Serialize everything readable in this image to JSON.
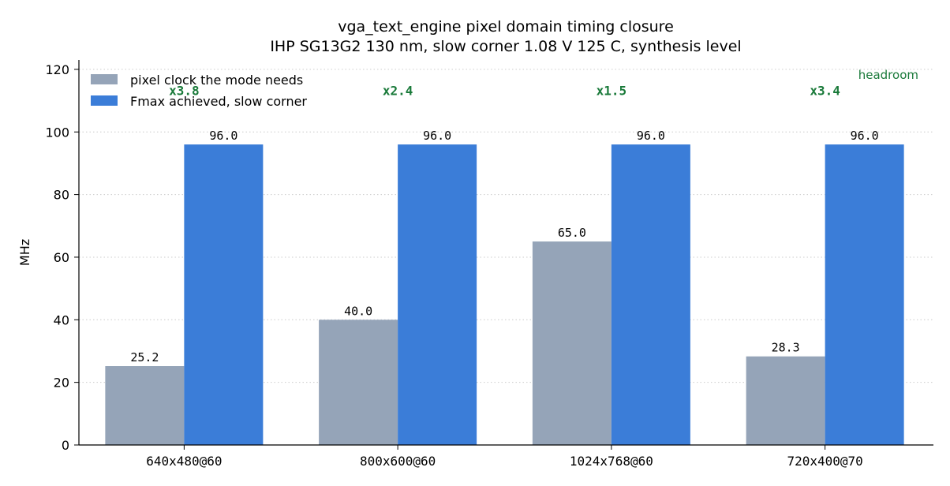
{
  "chart_data": {
    "type": "bar",
    "title": "vga_text_engine pixel domain timing closure",
    "subtitle": "IHP SG13G2 130 nm, slow corner 1.08 V 125 C, synthesis level",
    "ylabel": "MHz",
    "xlabel": "",
    "ylim": [
      0,
      123
    ],
    "yticks": [
      0,
      20,
      40,
      60,
      80,
      100,
      120
    ],
    "grid": "horizontal dotted",
    "legend_position": "top-left",
    "categories": [
      "640x480@60",
      "800x600@60",
      "1024x768@60",
      "720x400@70"
    ],
    "series": [
      {
        "name": "pixel clock the mode needs",
        "color": "#95a4b8",
        "values": [
          25.2,
          40.0,
          65.0,
          28.3
        ],
        "labels": [
          "25.2",
          "40.0",
          "65.0",
          "28.3"
        ]
      },
      {
        "name": "Fmax achieved, slow corner",
        "color": "#3b7dd8",
        "values": [
          96.0,
          96.0,
          96.0,
          96.0
        ],
        "labels": [
          "96.0",
          "96.0",
          "96.0",
          "96.0"
        ]
      }
    ],
    "ratios": [
      "x3.8",
      "x2.4",
      "x1.5",
      "x3.4"
    ],
    "ratio_color": "#1a7a3a",
    "annotation": "headroom"
  }
}
